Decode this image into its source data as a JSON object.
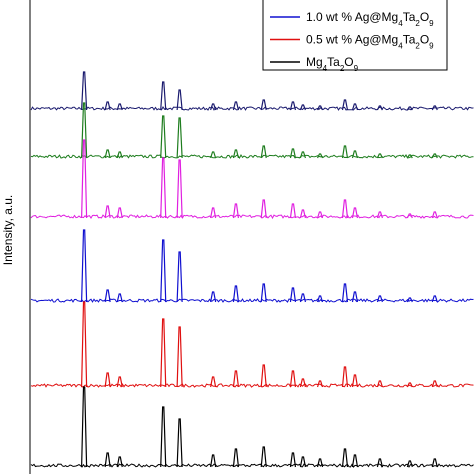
{
  "chart_data": {
    "type": "xrd",
    "y_label": "Intensity, a.u.",
    "x": [
      17.3,
      20.6,
      22.3,
      28.4,
      30.7,
      35.4,
      38.6,
      42.5,
      46.6,
      48.0,
      50.4,
      53.9,
      55.3,
      58.8,
      63.0,
      66.5
    ],
    "xlim": [
      5.5,
      72
    ],
    "series": [
      {
        "name": null,
        "color": "#1a1a6e",
        "values": [
          38,
          8,
          6,
          28,
          20,
          6,
          8,
          10,
          8,
          5,
          4,
          10,
          6,
          4,
          3,
          4
        ]
      },
      {
        "name": null,
        "color": "#1e7d1e",
        "values": [
          55,
          8,
          6,
          42,
          40,
          6,
          8,
          12,
          9,
          6,
          4,
          12,
          7,
          4,
          3,
          4
        ]
      },
      {
        "name": null,
        "color": "#e020e0",
        "values": [
          78,
          12,
          10,
          60,
          58,
          10,
          14,
          18,
          14,
          8,
          6,
          18,
          10,
          6,
          4,
          6
        ]
      },
      {
        "name": "1.0 wt % Ag@Mg4Ta2O9",
        "color": "#1010d0",
        "values": [
          72,
          12,
          8,
          62,
          50,
          10,
          16,
          18,
          14,
          8,
          6,
          18,
          10,
          6,
          4,
          6
        ]
      },
      {
        "name": "0.5 wt % Ag@Mg4Ta2O9",
        "color": "#e01010",
        "values": [
          85,
          14,
          10,
          68,
          60,
          10,
          16,
          22,
          16,
          8,
          6,
          20,
          12,
          6,
          4,
          6
        ]
      },
      {
        "name": "Mg4Ta2O9",
        "color": "#000000",
        "values": [
          80,
          14,
          10,
          60,
          48,
          12,
          18,
          20,
          14,
          10,
          8,
          18,
          12,
          8,
          6,
          8
        ]
      }
    ]
  }
}
